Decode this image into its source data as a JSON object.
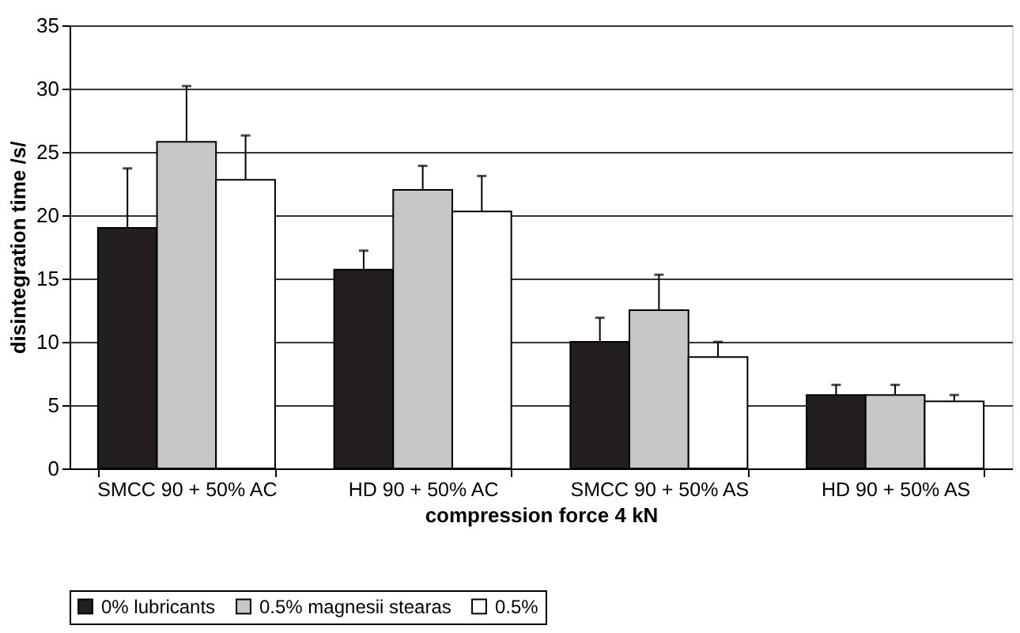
{
  "chart_data": {
    "type": "bar",
    "xlabel": "compression force 4 kN",
    "ylabel": "disintegration time /s/",
    "categories": [
      "SMCC 90 + 50% AC",
      "HD 90 + 50% AC",
      "SMCC 90 + 50% AS",
      "HD 90 + 50% AS"
    ],
    "series": [
      {
        "name": "0% lubricants",
        "color": "#231f20",
        "values": [
          19,
          15.7,
          10,
          5.8
        ],
        "errors": [
          [
            19,
            23.7
          ],
          [
            15.7,
            17.2
          ],
          [
            10,
            11.9
          ],
          [
            5.8,
            6.6
          ]
        ]
      },
      {
        "name": "0.5% magnesii stearas",
        "color": "#c6c7c8",
        "values": [
          25.8,
          22,
          12.5,
          5.8
        ],
        "errors": [
          [
            25.8,
            30.2
          ],
          [
            22,
            23.9
          ],
          [
            12.5,
            15.3
          ],
          [
            5.8,
            6.6
          ]
        ]
      },
      {
        "name": "0.5%",
        "color": "#ffffff",
        "values": [
          22.8,
          20.3,
          8.8,
          5.3
        ],
        "errors": [
          [
            22.8,
            26.3
          ],
          [
            20.3,
            23.1
          ],
          [
            8.8,
            10.0
          ],
          [
            5.3,
            5.8
          ]
        ]
      }
    ],
    "ylim": [
      0,
      35
    ],
    "yticks": [
      0,
      5,
      10,
      15,
      20,
      25,
      30,
      35
    ],
    "grid": "y",
    "legend": "bottom"
  }
}
